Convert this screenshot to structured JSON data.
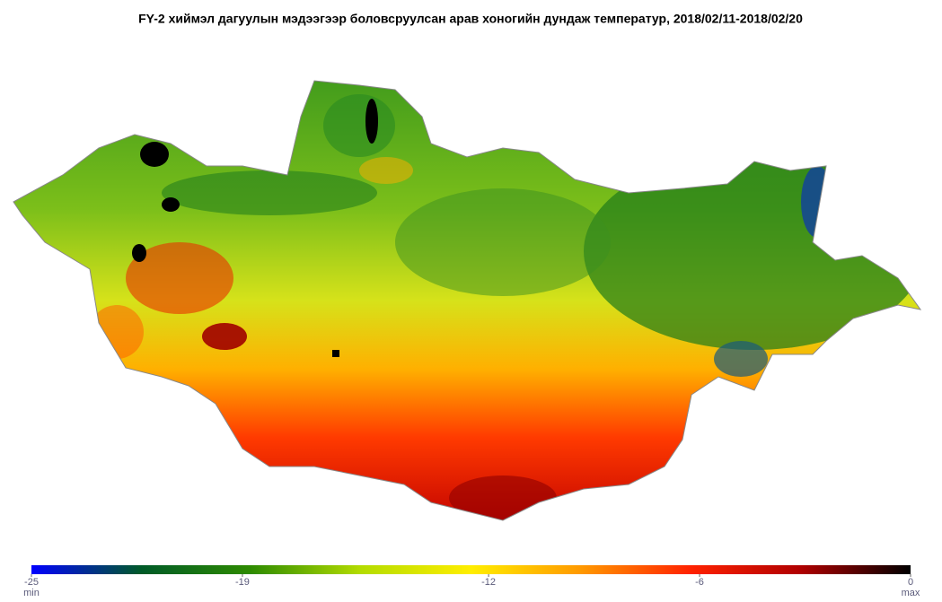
{
  "title": "FY-2 хиймэл дагуулын мэдээгээр боловсруулсан арав хоногийн дундаж температур, 2018/02/11-2018/02/20",
  "legend": {
    "min": -25,
    "max": 0,
    "ticks": [
      -25,
      -19,
      -12,
      -6,
      0
    ],
    "min_label": "min",
    "max_label": "max",
    "colors": [
      "#0000ff",
      "#005a28",
      "#2e8b00",
      "#b4dc00",
      "#ffee00",
      "#ff9900",
      "#ff2200",
      "#b00000",
      "#000000"
    ]
  }
}
